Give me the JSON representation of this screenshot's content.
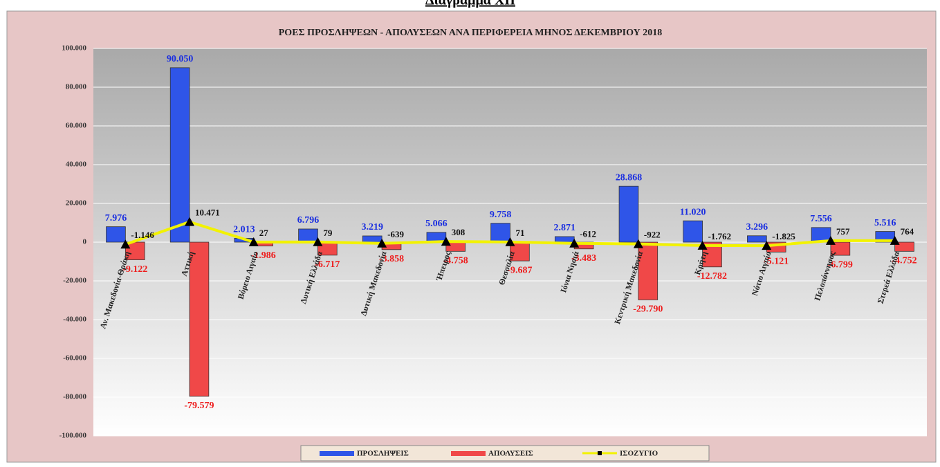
{
  "heading": "Διάγραμμα XII",
  "chart_data": {
    "type": "bar",
    "title": "ΡΟΕΣ ΠΡΟΣΛΗΨΕΩΝ - ΑΠΟΛΥΣΕΩΝ ΑΝΑ ΠΕΡΙΦΕΡΕΙΑ ΜΗΝΟΣ ΔΕΚΕΜΒΡΙΟΥ 2018",
    "categories": [
      "Αν. Μακεδονία-Θράκη",
      "Αττική",
      "Βόρειο Αιγαίο",
      "Δυτική Ελλάδα",
      "Δυτική Μακεδονία",
      "Ήπειρος",
      "Θεσσαλία",
      "Ιόνια Νησιά",
      "Κεντρική Μακεδονία",
      "Κρήτη",
      "Νότιο Αιγαίο",
      "Πελοπόννησος",
      "Στερεά Ελλάδα"
    ],
    "series": [
      {
        "name": "ΠΡΟΣΛΗΨΕΙΣ",
        "color": "#2f55e8",
        "values": [
          7976,
          90050,
          2013,
          6796,
          3219,
          5066,
          9758,
          2871,
          28868,
          11020,
          3296,
          7556,
          5516
        ],
        "value_labels": [
          "7.976",
          "90.050",
          "2.013",
          "6.796",
          "3.219",
          "5.066",
          "9.758",
          "2.871",
          "28.868",
          "11.020",
          "3.296",
          "7.556",
          "5.516"
        ]
      },
      {
        "name": "ΑΠΟΛΥΣΕΙΣ",
        "color": "#f04848",
        "values": [
          -9122,
          -79579,
          -1986,
          -6717,
          -3858,
          -4758,
          -9687,
          -3483,
          -29790,
          -12782,
          -5121,
          -6799,
          -4752
        ],
        "value_labels": [
          "-9.122",
          "-79.579",
          "-1.986",
          "-6.717",
          "-3.858",
          "-4.758",
          "-9.687",
          "-3.483",
          "-29.790",
          "-12.782",
          "-5.121",
          "-6.799",
          "-4.752"
        ]
      },
      {
        "name": "ΙΣΟΖΥΓΙΟ",
        "color": "#f2f200",
        "type": "line",
        "values": [
          -1146,
          10471,
          27,
          79,
          -639,
          308,
          71,
          -612,
          -922,
          -1762,
          -1825,
          757,
          764
        ],
        "value_labels": [
          "-1.146",
          "10.471",
          "27",
          "79",
          "-639",
          "308",
          "71",
          "-612",
          "-922",
          "-1.762",
          "-1.825",
          "757",
          "764"
        ]
      }
    ],
    "ylim": [
      -100000,
      100000
    ],
    "yticks": [
      {
        "value": -100000,
        "label": "-100.000"
      },
      {
        "value": -80000,
        "label": "-80.000"
      },
      {
        "value": -60000,
        "label": "-60.000"
      },
      {
        "value": -40000,
        "label": "-40.000"
      },
      {
        "value": -20000,
        "label": "-20.000"
      },
      0,
      {
        "value": 20000,
        "label": "20.000"
      },
      {
        "value": 40000,
        "label": "40.000"
      },
      {
        "value": 60000,
        "label": "60.000"
      },
      {
        "value": 80000,
        "label": "80.000"
      },
      {
        "value": 100000,
        "label": "100.000"
      }
    ],
    "grid": true,
    "legend": "bottom"
  }
}
